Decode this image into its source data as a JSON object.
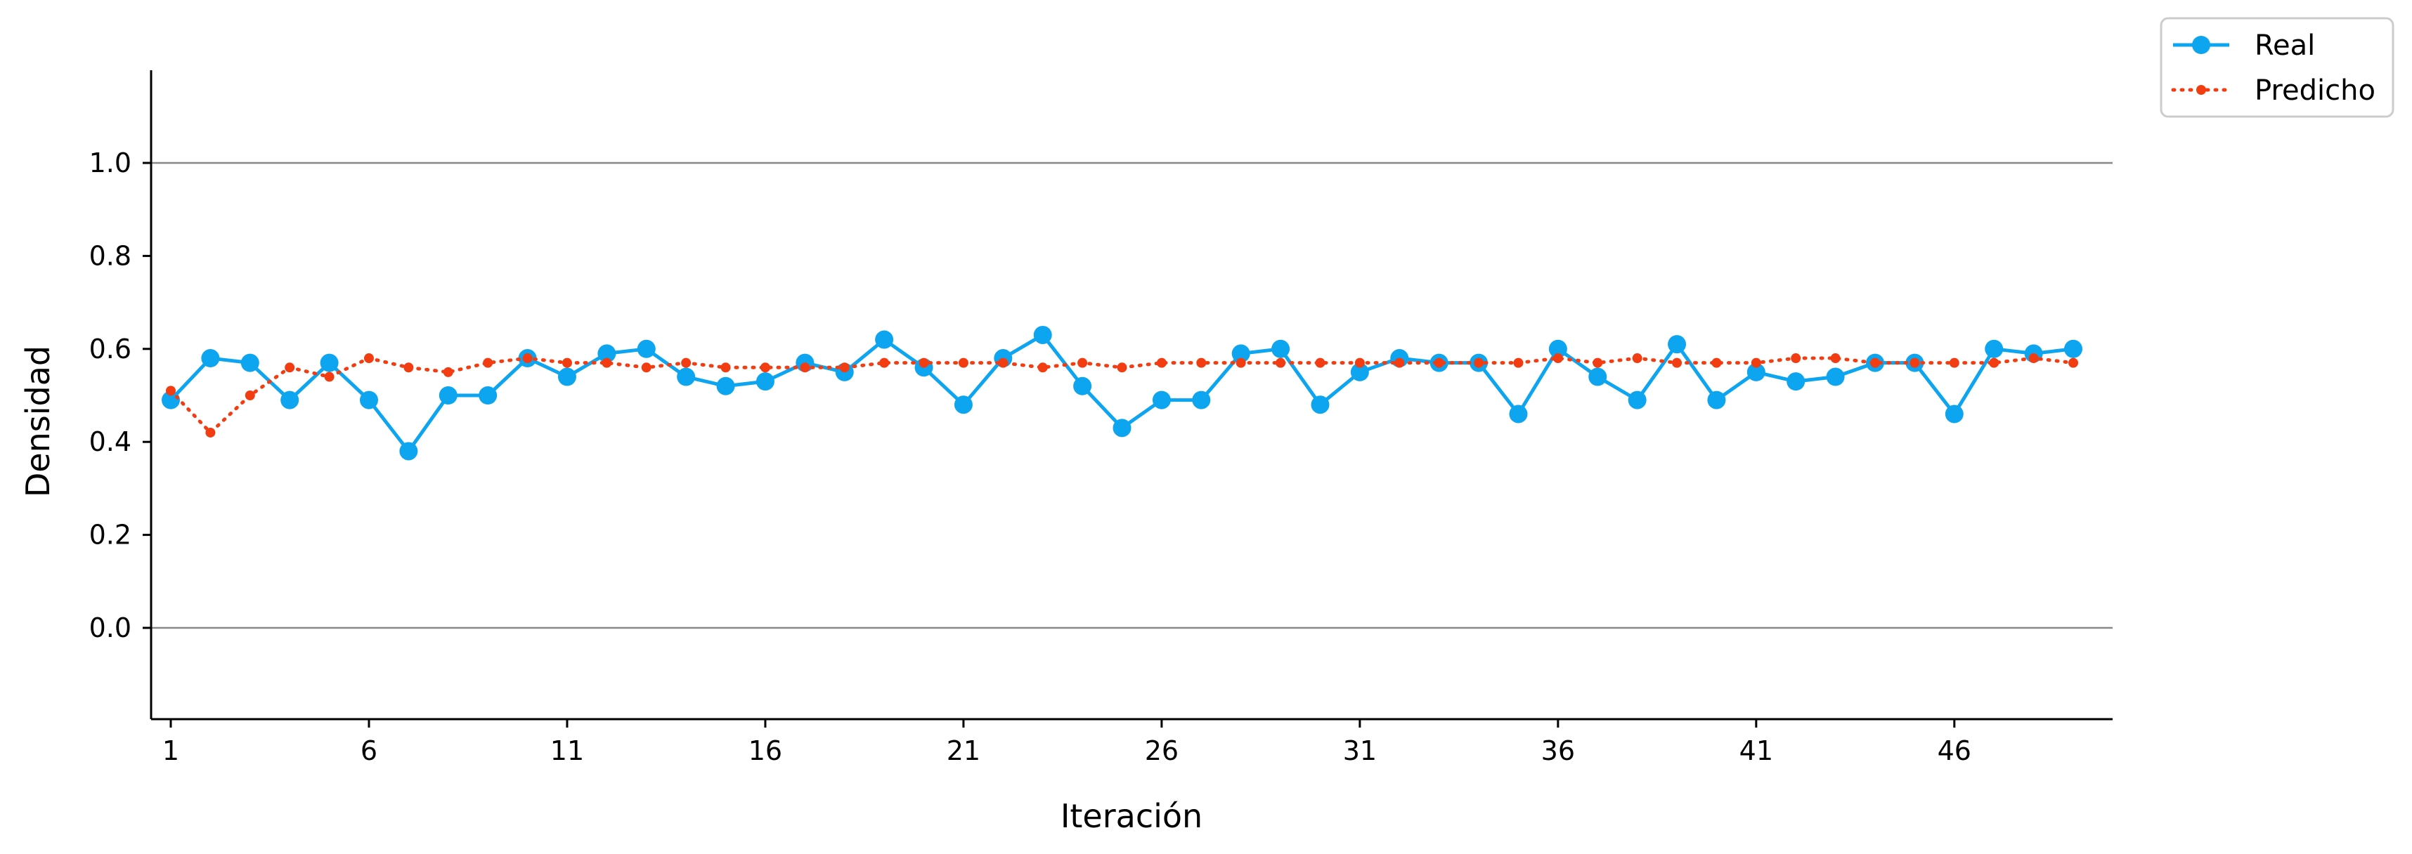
{
  "chart_data": {
    "type": "line",
    "xlabel": "Iteración",
    "ylabel": "Densidad",
    "x_ticks": [
      1,
      6,
      11,
      16,
      21,
      26,
      31,
      36,
      41,
      46
    ],
    "y_ticks": [
      "0.0",
      "0.2",
      "0.4",
      "0.6",
      "0.8",
      "1.0"
    ],
    "xlim": [
      0.5,
      50
    ],
    "ylim": [
      -0.2,
      1.2
    ],
    "reference_lines": [
      0.0,
      1.0
    ],
    "x": [
      1,
      2,
      3,
      4,
      5,
      6,
      7,
      8,
      9,
      10,
      11,
      12,
      13,
      14,
      15,
      16,
      17,
      18,
      19,
      20,
      21,
      22,
      23,
      24,
      25,
      26,
      27,
      28,
      29,
      30,
      31,
      32,
      33,
      34,
      35,
      36,
      37,
      38,
      39,
      40,
      41,
      42,
      43,
      44,
      45,
      46,
      47,
      48,
      49
    ],
    "series": [
      {
        "name": "Real",
        "color": "#0ea5f0",
        "style": "solid",
        "values": [
          0.49,
          0.58,
          0.57,
          0.49,
          0.57,
          0.49,
          0.38,
          0.5,
          0.5,
          0.58,
          0.54,
          0.59,
          0.6,
          0.54,
          0.52,
          0.53,
          0.57,
          0.55,
          0.62,
          0.56,
          0.48,
          0.58,
          0.63,
          0.52,
          0.43,
          0.49,
          0.49,
          0.59,
          0.6,
          0.48,
          0.55,
          0.58,
          0.57,
          0.57,
          0.46,
          0.6,
          0.54,
          0.49,
          0.61,
          0.49,
          0.55,
          0.53,
          0.54,
          0.57,
          0.57,
          0.46,
          0.6,
          0.59,
          0.6
        ]
      },
      {
        "name": "Predicho",
        "color": "#f23d12",
        "style": "dotted",
        "values": [
          0.51,
          0.42,
          0.5,
          0.56,
          0.54,
          0.58,
          0.56,
          0.55,
          0.57,
          0.58,
          0.57,
          0.57,
          0.56,
          0.57,
          0.56,
          0.56,
          0.56,
          0.56,
          0.57,
          0.57,
          0.57,
          0.57,
          0.56,
          0.57,
          0.56,
          0.57,
          0.57,
          0.57,
          0.57,
          0.57,
          0.57,
          0.57,
          0.57,
          0.57,
          0.57,
          0.58,
          0.57,
          0.58,
          0.57,
          0.57,
          0.57,
          0.58,
          0.58,
          0.57,
          0.57,
          0.57,
          0.57,
          0.58,
          0.57
        ]
      }
    ],
    "legend_position": "top-right",
    "grid": false
  }
}
